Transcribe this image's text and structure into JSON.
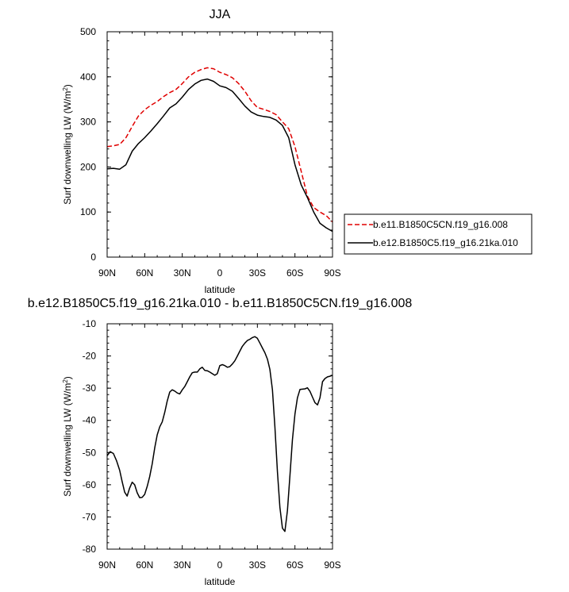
{
  "chart_data": [
    {
      "type": "line",
      "title": "JJA",
      "xlabel": "latitude",
      "ylabel": "Surf downwelling LW (W/m²)",
      "xlim": [
        90,
        -90
      ],
      "ylim": [
        0,
        500
      ],
      "x_tick_labels": [
        "90N",
        "60N",
        "30N",
        "0",
        "30S",
        "60S",
        "90S"
      ],
      "x_tick_values": [
        90,
        60,
        30,
        0,
        -30,
        -60,
        -90
      ],
      "y_tick_labels": [
        "0",
        "100",
        "200",
        "300",
        "400",
        "500"
      ],
      "y_tick_values": [
        0,
        100,
        200,
        300,
        400,
        500
      ],
      "legend_position": "right",
      "series": [
        {
          "name": "b.e11.B1850C5CN.f19_g16.008",
          "color": "#e00000",
          "dash": "dashed",
          "x": [
            90,
            85,
            80,
            75,
            70,
            65,
            60,
            55,
            50,
            45,
            40,
            35,
            30,
            25,
            20,
            15,
            10,
            5,
            0,
            -5,
            -10,
            -15,
            -20,
            -25,
            -30,
            -35,
            -40,
            -45,
            -50,
            -55,
            -60,
            -65,
            -70,
            -75,
            -80,
            -85,
            -90
          ],
          "y": [
            245,
            247,
            250,
            265,
            290,
            313,
            327,
            337,
            345,
            356,
            365,
            372,
            385,
            400,
            410,
            416,
            420,
            418,
            410,
            405,
            398,
            385,
            368,
            347,
            332,
            328,
            323,
            316,
            300,
            285,
            245,
            190,
            135,
            110,
            100,
            92,
            78
          ]
        },
        {
          "name": "b.e12.B1850C5.f19_g16.21ka.010",
          "color": "#000000",
          "dash": "solid",
          "x": [
            90,
            85,
            80,
            75,
            70,
            65,
            60,
            55,
            50,
            45,
            40,
            35,
            30,
            25,
            20,
            15,
            10,
            5,
            0,
            -5,
            -10,
            -15,
            -20,
            -25,
            -30,
            -35,
            -40,
            -45,
            -50,
            -55,
            -60,
            -65,
            -70,
            -75,
            -80,
            -85,
            -90
          ],
          "y": [
            196,
            197,
            195,
            205,
            235,
            252,
            265,
            280,
            296,
            313,
            331,
            340,
            355,
            372,
            384,
            392,
            395,
            390,
            380,
            376,
            368,
            352,
            335,
            322,
            315,
            312,
            310,
            304,
            292,
            265,
            205,
            160,
            132,
            100,
            75,
            65,
            57
          ]
        }
      ]
    },
    {
      "type": "line",
      "title": "b.e12.B1850C5.f19_g16.21ka.010 - b.e11.B1850C5CN.f19_g16.008",
      "xlabel": "latitude",
      "ylabel": "Surf downwelling LW (W/m²)",
      "xlim": [
        90,
        -90
      ],
      "ylim": [
        -80,
        -10
      ],
      "x_tick_labels": [
        "90N",
        "60N",
        "30N",
        "0",
        "30S",
        "60S",
        "90S"
      ],
      "x_tick_values": [
        90,
        60,
        30,
        0,
        -30,
        -60,
        -90
      ],
      "y_tick_labels": [
        "-80",
        "-70",
        "-60",
        "-50",
        "-40",
        "-30",
        "-20",
        "-10"
      ],
      "y_tick_values": [
        -80,
        -70,
        -60,
        -50,
        -40,
        -30,
        -20,
        -10
      ],
      "series": [
        {
          "color": "#000000",
          "dash": "solid",
          "x": [
            90,
            87.5,
            85,
            82.5,
            80,
            78,
            76,
            74,
            72,
            70,
            68,
            66,
            64,
            62,
            60,
            58,
            56,
            54,
            52,
            50,
            48,
            46,
            44,
            42,
            40,
            38,
            36,
            34,
            32,
            30,
            28,
            26,
            24,
            22,
            20,
            18,
            16,
            14,
            12,
            10,
            8,
            6,
            4,
            2,
            0,
            -2,
            -4,
            -6,
            -8,
            -10,
            -12,
            -14,
            -16,
            -18,
            -20,
            -22,
            -24,
            -26,
            -28,
            -30,
            -32,
            -34,
            -36,
            -38,
            -40,
            -42,
            -44,
            -46,
            -48,
            -50,
            -52,
            -54,
            -56,
            -58,
            -60,
            -62,
            -64,
            -66,
            -68,
            -70,
            -72,
            -74,
            -76,
            -78,
            -80,
            -82,
            -84,
            -86,
            -88,
            -90
          ],
          "y": [
            -51,
            -49.7,
            -50.3,
            -52.5,
            -55.5,
            -59,
            -62.3,
            -63.5,
            -61,
            -59.2,
            -60,
            -62.5,
            -64,
            -63.9,
            -63,
            -60.5,
            -57.5,
            -53.5,
            -48.5,
            -44.5,
            -42,
            -40.5,
            -37.5,
            -34,
            -31.2,
            -30.5,
            -30.9,
            -31.5,
            -31.8,
            -30.5,
            -29.5,
            -28,
            -26.5,
            -25.2,
            -25,
            -25,
            -24,
            -23.5,
            -24.5,
            -24.6,
            -25,
            -25.5,
            -26,
            -25.5,
            -23,
            -22.7,
            -23,
            -23.5,
            -23.3,
            -22.5,
            -21.5,
            -20,
            -18.5,
            -17,
            -16,
            -15.2,
            -14.8,
            -14.3,
            -14,
            -14.5,
            -16,
            -17.5,
            -19,
            -21,
            -24.2,
            -30.5,
            -42,
            -56,
            -67,
            -73.5,
            -74.5,
            -68,
            -57,
            -46,
            -38,
            -33,
            -30.4,
            -30.3,
            -30.2,
            -29.9,
            -31,
            -32.8,
            -34.5,
            -35.2,
            -33,
            -28,
            -27,
            -26.5,
            -26.3,
            -26
          ]
        }
      ]
    }
  ]
}
